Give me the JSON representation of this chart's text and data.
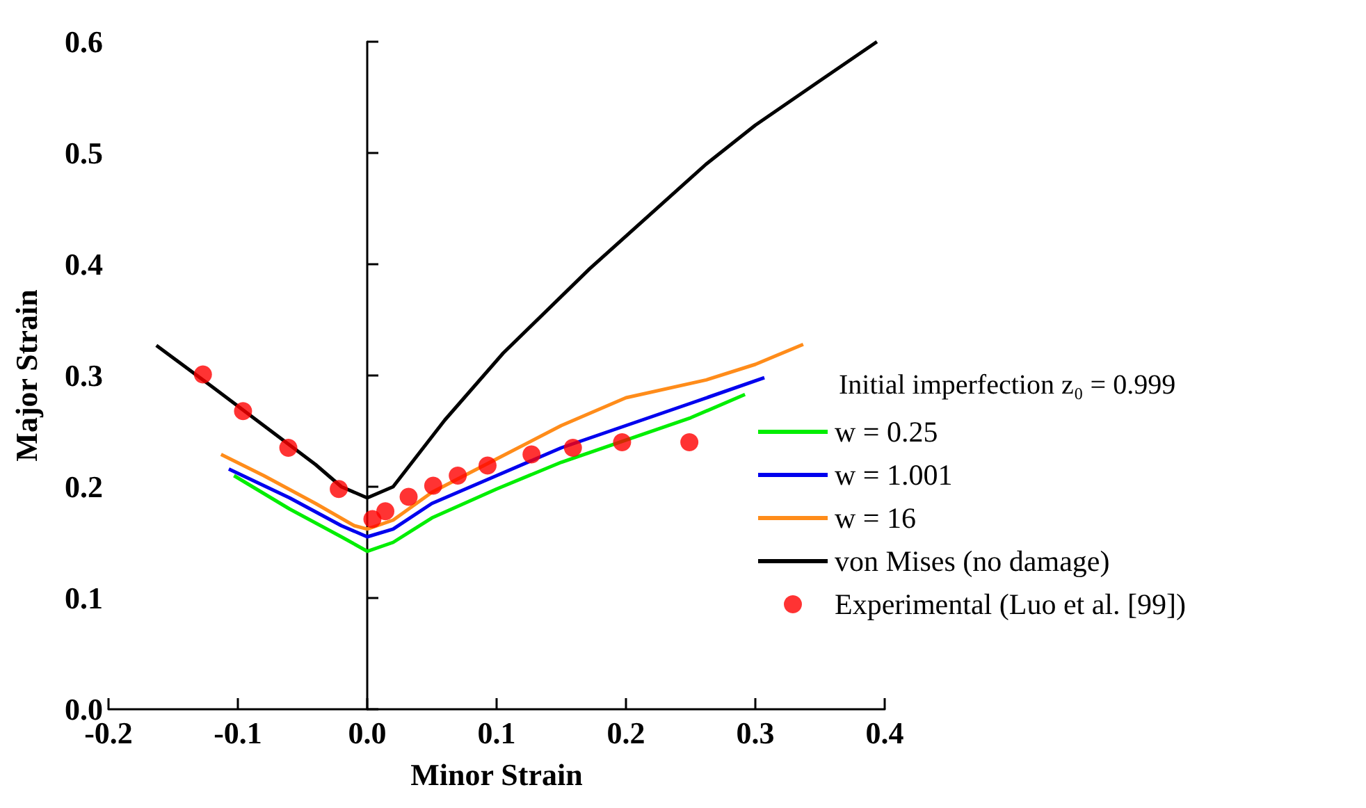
{
  "chart_data": {
    "type": "line",
    "xlabel": "Minor Strain",
    "ylabel": "Major Strain",
    "legend_title": "Initial imperfection z₀ = 0.999",
    "legend": "right",
    "marker": "none",
    "line_style": "solid",
    "xlim": [
      -0.2,
      0.4
    ],
    "xticks": [
      -0.2,
      -0.1,
      {
        "value": 0,
        "label": "0.0"
      },
      0.1,
      0.2,
      0.3,
      0.4
    ],
    "ylim": [
      0,
      0.6
    ],
    "yticks": [
      {
        "value": 0,
        "label": "0.0"
      },
      0.1,
      0.2,
      0.3,
      0.4,
      0.5,
      0.6
    ],
    "series": [
      {
        "name": "w = 0.25",
        "color": "#00ee00",
        "x": [
          -0.103,
          -0.06,
          -0.02,
          0,
          0.02,
          0.05,
          0.1,
          0.15,
          0.2,
          0.25,
          0.292
        ],
        "values": [
          0.21,
          0.18,
          0.155,
          0.142,
          0.15,
          0.172,
          0.198,
          0.222,
          0.242,
          0.262,
          0.283
        ]
      },
      {
        "name": "w = 1.001",
        "color": "#0000ee",
        "x": [
          -0.107,
          -0.06,
          -0.02,
          0,
          0.02,
          0.05,
          0.1,
          0.15,
          0.2,
          0.25,
          0.307
        ],
        "values": [
          0.216,
          0.19,
          0.165,
          0.155,
          0.162,
          0.185,
          0.21,
          0.235,
          0.255,
          0.275,
          0.298
        ]
      },
      {
        "name": "w = 16",
        "color": "#ff8c1a",
        "x": [
          -0.113,
          -0.08,
          -0.04,
          -0.01,
          0,
          0.02,
          0.05,
          0.1,
          0.15,
          0.2,
          0.262,
          0.3,
          0.337
        ],
        "values": [
          0.229,
          0.21,
          0.185,
          0.165,
          0.162,
          0.17,
          0.195,
          0.225,
          0.255,
          0.28,
          0.296,
          0.31,
          0.328
        ]
      },
      {
        "name": "von Mises (no damage)",
        "color": "#000000",
        "x": [
          -0.163,
          -0.12,
          -0.08,
          -0.04,
          -0.02,
          0,
          0.02,
          0.04,
          0.06,
          0.105,
          0.172,
          0.262,
          0.3,
          0.35,
          0.394
        ],
        "values": [
          0.327,
          0.29,
          0.255,
          0.22,
          0.2,
          0.19,
          0.2,
          0.23,
          0.26,
          0.32,
          0.396,
          0.49,
          0.525,
          0.565,
          0.6
        ]
      },
      {
        "name": "Experimental (Luo et al. [99])",
        "type": "scatter",
        "marker": "circle",
        "color": "#ff0000",
        "x": [
          -0.127,
          -0.096,
          -0.061,
          -0.022,
          0.004,
          0.014,
          0.032,
          0.051,
          0.07,
          0.093,
          0.127,
          0.159,
          0.197,
          0.249
        ],
        "values": [
          0.301,
          0.268,
          0.235,
          0.198,
          0.171,
          0.178,
          0.191,
          0.201,
          0.21,
          0.219,
          0.229,
          0.235,
          0.24,
          0.24
        ]
      }
    ]
  }
}
